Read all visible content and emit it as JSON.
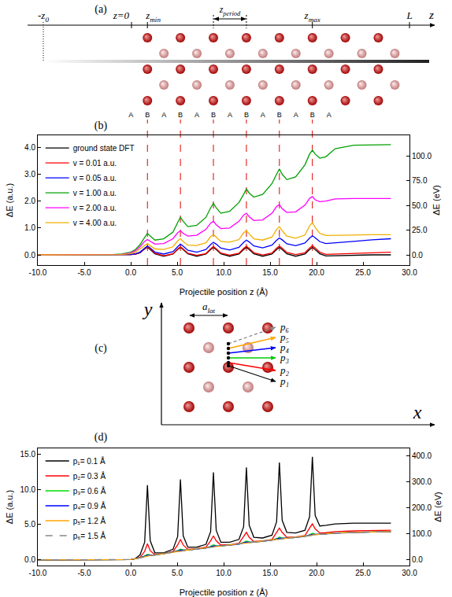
{
  "chart_data": [
    {
      "type": "line",
      "title": "(b)",
      "x_label": "Projectile position z (Å)",
      "y_label": "ΔE (a.u.)",
      "y2_label": "ΔE (eV)",
      "x": [
        -10,
        -7,
        -4,
        -2,
        -1,
        0,
        0.5,
        1.0,
        1.5,
        1.8,
        2.1,
        2.6,
        3.55,
        4.55,
        5.05,
        5.35,
        5.65,
        6.15,
        7.1,
        8.1,
        8.6,
        8.9,
        9.2,
        9.7,
        10.65,
        11.65,
        12.15,
        12.45,
        12.75,
        13.25,
        14.2,
        15.2,
        15.7,
        16.0,
        16.3,
        16.8,
        17.75,
        18.75,
        19.25,
        19.55,
        19.85,
        20.35,
        21,
        22,
        24,
        26,
        28
      ],
      "series": [
        {
          "name": "ground state DFT",
          "color": "#000000",
          "values": [
            0,
            0,
            0,
            0,
            0,
            0.01,
            0.03,
            0.08,
            0.22,
            0.28,
            0.2,
            0.04,
            -0.05,
            0.03,
            0.2,
            0.28,
            0.2,
            0.04,
            -0.05,
            0.03,
            0.2,
            0.28,
            0.2,
            0.04,
            -0.05,
            0.03,
            0.2,
            0.28,
            0.2,
            0.04,
            -0.05,
            0.03,
            0.2,
            0.28,
            0.2,
            0.04,
            -0.05,
            0.03,
            0.2,
            0.28,
            0.2,
            0.04,
            -0.04,
            -0.03,
            -0.01,
            0,
            0
          ]
        },
        {
          "name": "v = 0.01 a.u.",
          "color": "#ff0000",
          "values": [
            0,
            0,
            0,
            0,
            0,
            0.01,
            0.03,
            0.09,
            0.23,
            0.3,
            0.22,
            0.06,
            -0.03,
            0.04,
            0.22,
            0.3,
            0.22,
            0.06,
            -0.02,
            0.05,
            0.23,
            0.31,
            0.23,
            0.07,
            -0.01,
            0.06,
            0.24,
            0.32,
            0.24,
            0.08,
            0,
            0.07,
            0.25,
            0.33,
            0.25,
            0.09,
            0.01,
            0.08,
            0.26,
            0.34,
            0.26,
            0.1,
            0.02,
            0.03,
            0.05,
            0.08,
            0.1
          ]
        },
        {
          "name": "v = 0.05 a.u.",
          "color": "#0000ff",
          "values": [
            0,
            0,
            0,
            0,
            0,
            0.01,
            0.04,
            0.1,
            0.25,
            0.33,
            0.26,
            0.1,
            0.03,
            0.12,
            0.3,
            0.4,
            0.32,
            0.17,
            0.1,
            0.2,
            0.38,
            0.47,
            0.4,
            0.25,
            0.18,
            0.28,
            0.46,
            0.55,
            0.48,
            0.33,
            0.26,
            0.36,
            0.54,
            0.63,
            0.56,
            0.41,
            0.34,
            0.44,
            0.62,
            0.71,
            0.64,
            0.49,
            0.42,
            0.44,
            0.5,
            0.56,
            0.6
          ]
        },
        {
          "name": "v = 1.00 a.u.",
          "color": "#00a000",
          "values": [
            0,
            0,
            0,
            0.01,
            0.03,
            0.1,
            0.2,
            0.38,
            0.65,
            0.8,
            0.7,
            0.55,
            0.6,
            0.85,
            1.2,
            1.4,
            1.25,
            1.05,
            1.1,
            1.4,
            1.75,
            1.92,
            1.75,
            1.55,
            1.62,
            1.95,
            2.25,
            2.45,
            2.3,
            2.15,
            2.25,
            2.65,
            3.0,
            3.2,
            3.0,
            2.8,
            2.9,
            3.35,
            3.75,
            3.9,
            3.75,
            3.6,
            3.65,
            3.95,
            4.08,
            4.1,
            4.1
          ]
        },
        {
          "name": "v = 2.00 a.u.",
          "color": "#ff00ff",
          "values": [
            0,
            0,
            0,
            0,
            0.02,
            0.07,
            0.15,
            0.3,
            0.5,
            0.57,
            0.5,
            0.4,
            0.42,
            0.6,
            0.82,
            0.9,
            0.8,
            0.7,
            0.73,
            0.95,
            1.18,
            1.25,
            1.12,
            0.98,
            1.0,
            1.25,
            1.48,
            1.55,
            1.42,
            1.28,
            1.3,
            1.55,
            1.8,
            1.87,
            1.72,
            1.58,
            1.6,
            1.85,
            2.1,
            2.17,
            2.05,
            1.98,
            2.0,
            2.08,
            2.1,
            2.1,
            2.1
          ]
        },
        {
          "name": "v = 4.00 a.u.",
          "color": "#f0b000",
          "values": [
            0,
            0,
            0,
            0,
            0.01,
            0.05,
            0.1,
            0.22,
            0.36,
            0.42,
            0.34,
            0.22,
            0.2,
            0.3,
            0.52,
            0.6,
            0.5,
            0.36,
            0.35,
            0.45,
            0.68,
            0.76,
            0.66,
            0.5,
            0.47,
            0.57,
            0.82,
            0.9,
            0.78,
            0.6,
            0.55,
            0.66,
            0.95,
            1.05,
            0.9,
            0.7,
            0.62,
            0.74,
            1.08,
            1.2,
            1.02,
            0.8,
            0.72,
            0.73,
            0.75,
            0.75,
            0.75
          ]
        }
      ],
      "xlim": [
        -10,
        30
      ],
      "xticks": [
        {
          "value": -10,
          "label": "-10.0"
        },
        {
          "value": -5,
          "label": "-5.0"
        },
        {
          "value": 0,
          "label": "0.0"
        },
        {
          "value": 5,
          "label": "5.0"
        },
        {
          "value": 10,
          "label": "10.0"
        },
        {
          "value": 15,
          "label": "15.0"
        },
        {
          "value": 20,
          "label": "20.0"
        },
        {
          "value": 25,
          "label": "25.0"
        },
        {
          "value": 30,
          "label": "30.0"
        }
      ],
      "ylim": [
        -0.38,
        4.45
      ],
      "yticks": [
        {
          "value": 0,
          "label": "0.0"
        },
        {
          "value": 1,
          "label": "1.0"
        },
        {
          "value": 2,
          "label": "2.0"
        },
        {
          "value": 3,
          "label": "3.0"
        },
        {
          "value": 4,
          "label": "4.0"
        }
      ],
      "y2lim": [
        -10.34,
        121.09
      ],
      "y2ticks": [
        {
          "value": 0,
          "label": "0.0"
        },
        {
          "value": 25,
          "label": "25.0"
        },
        {
          "value": 50,
          "label": "50.0"
        },
        {
          "value": 75,
          "label": "75.0"
        },
        {
          "value": 100,
          "label": "100.0"
        }
      ],
      "vlines": [
        1.8,
        5.35,
        8.9,
        12.45,
        16.0,
        19.55
      ],
      "legend": "upper left",
      "grid": false
    },
    {
      "type": "line",
      "title": "(d)",
      "x_label": "Projectile position z (Å)",
      "y_label": "ΔE (a.u.)",
      "y2_label": "ΔE (eV)",
      "x": [
        -10,
        -7,
        -4,
        -2,
        -1,
        0,
        0.5,
        1.0,
        1.5,
        1.8,
        2.1,
        2.6,
        3.55,
        4.55,
        5.05,
        5.35,
        5.65,
        6.15,
        7.1,
        8.1,
        8.6,
        8.9,
        9.2,
        9.7,
        10.65,
        11.65,
        12.15,
        12.45,
        12.75,
        13.25,
        14.2,
        15.2,
        15.7,
        16.0,
        16.3,
        16.8,
        17.75,
        18.75,
        19.25,
        19.55,
        19.85,
        20.35,
        21,
        22,
        24,
        26,
        28
      ],
      "series": [
        {
          "name": "p₁= 0.1 Å",
          "color": "#000000",
          "values": [
            0,
            0,
            0,
            0,
            0,
            0.05,
            0.2,
            0.7,
            2.5,
            10.6,
            2.7,
            1.0,
            1.0,
            1.5,
            3.3,
            11.4,
            3.4,
            1.8,
            1.8,
            2.2,
            4.0,
            12.4,
            4.2,
            2.5,
            2.5,
            2.9,
            4.7,
            13.1,
            4.9,
            3.2,
            3.1,
            3.5,
            5.4,
            13.8,
            5.6,
            3.9,
            3.8,
            4.2,
            6.1,
            14.6,
            6.3,
            4.8,
            4.9,
            5.1,
            5.2,
            5.2,
            5.2
          ]
        },
        {
          "name": "p₂= 0.3 Å",
          "color": "#ff0000",
          "values": [
            0,
            0,
            0,
            0,
            0,
            0.05,
            0.15,
            0.35,
            1.2,
            2.3,
            1.3,
            0.75,
            0.9,
            1.2,
            2.1,
            2.9,
            2.1,
            1.5,
            1.6,
            1.8,
            2.7,
            3.4,
            2.7,
            2.1,
            2.15,
            2.35,
            3.3,
            3.9,
            3.2,
            2.6,
            2.7,
            2.9,
            3.9,
            4.5,
            3.9,
            3.2,
            3.25,
            3.45,
            4.5,
            5.1,
            4.4,
            3.8,
            3.85,
            4.0,
            4.1,
            4.15,
            4.2
          ]
        },
        {
          "name": "p₃= 0.6 Å",
          "color": "#00dd00",
          "values": [
            0,
            0,
            0,
            0,
            0,
            0.05,
            0.15,
            0.3,
            0.57,
            0.8,
            0.7,
            0.7,
            0.9,
            1.1,
            1.32,
            1.53,
            1.42,
            1.4,
            1.55,
            1.7,
            1.92,
            2.12,
            2.0,
            1.98,
            2.1,
            2.25,
            2.47,
            2.67,
            2.55,
            2.52,
            2.65,
            2.8,
            3.02,
            3.22,
            3.1,
            3.08,
            3.2,
            3.35,
            3.57,
            3.77,
            3.65,
            3.62,
            3.7,
            3.8,
            3.9,
            3.95,
            4.0
          ]
        },
        {
          "name": "p₄= 0.9 Å",
          "color": "#0000ff",
          "values": [
            0,
            0,
            0,
            0,
            0,
            0.05,
            0.15,
            0.3,
            0.5,
            0.65,
            0.65,
            0.7,
            0.88,
            1.08,
            1.25,
            1.38,
            1.36,
            1.4,
            1.53,
            1.68,
            1.85,
            1.97,
            1.94,
            1.97,
            2.08,
            2.23,
            2.4,
            2.52,
            2.5,
            2.51,
            2.63,
            2.78,
            2.95,
            3.07,
            3.05,
            3.07,
            3.18,
            3.33,
            3.5,
            3.62,
            3.6,
            3.61,
            3.68,
            3.78,
            3.88,
            3.94,
            3.98
          ]
        },
        {
          "name": "p₅= 1.2 Å",
          "color": "#ffa500",
          "values": [
            0,
            0,
            0,
            0,
            0,
            0.05,
            0.15,
            0.3,
            0.45,
            0.55,
            0.6,
            0.7,
            0.9,
            1.1,
            1.2,
            1.28,
            1.32,
            1.4,
            1.55,
            1.7,
            1.8,
            1.87,
            1.9,
            1.98,
            2.1,
            2.25,
            2.35,
            2.42,
            2.45,
            2.52,
            2.65,
            2.8,
            2.9,
            2.97,
            3.0,
            3.08,
            3.2,
            3.35,
            3.45,
            3.52,
            3.55,
            3.62,
            3.7,
            3.8,
            3.9,
            3.95,
            4.0
          ]
        },
        {
          "name": "p₆= 1.5 Å",
          "color": "#888888",
          "line_style": "dashed",
          "values": [
            0,
            0,
            0,
            0,
            0,
            0.05,
            0.15,
            0.3,
            0.42,
            0.5,
            0.58,
            0.7,
            0.9,
            1.1,
            1.16,
            1.22,
            1.3,
            1.4,
            1.55,
            1.7,
            1.76,
            1.82,
            1.88,
            1.98,
            2.1,
            2.25,
            2.31,
            2.37,
            2.43,
            2.52,
            2.65,
            2.8,
            2.86,
            2.92,
            2.98,
            3.08,
            3.2,
            3.35,
            3.41,
            3.47,
            3.53,
            3.62,
            3.7,
            3.8,
            3.9,
            3.97,
            4.05
          ]
        }
      ],
      "xlim": [
        -10,
        30
      ],
      "xticks": [
        {
          "value": -10,
          "label": "-10.0"
        },
        {
          "value": -5,
          "label": "-5.0"
        },
        {
          "value": 0,
          "label": "0.0"
        },
        {
          "value": 5,
          "label": "5.0"
        },
        {
          "value": 10,
          "label": "10.0"
        },
        {
          "value": 15,
          "label": "15.0"
        },
        {
          "value": 20,
          "label": "20.0"
        },
        {
          "value": 25,
          "label": "25.0"
        },
        {
          "value": 30,
          "label": "30.0"
        }
      ],
      "ylim": [
        -0.8,
        15.8
      ],
      "yticks": [
        {
          "value": 0,
          "label": "0.0"
        },
        {
          "value": 5,
          "label": "5.0"
        },
        {
          "value": 10,
          "label": "10.0"
        },
        {
          "value": 15,
          "label": "15.0"
        }
      ],
      "y2lim": [
        -21.77,
        429.94
      ],
      "y2ticks": [
        {
          "value": 0,
          "label": "0.0"
        },
        {
          "value": 100,
          "label": "100.0"
        },
        {
          "value": 200,
          "label": "200.0"
        },
        {
          "value": 300,
          "label": "300.0"
        },
        {
          "value": 400,
          "label": "400.0"
        }
      ],
      "legend": "upper left",
      "grid": false
    }
  ],
  "diagram_a": {
    "title": "(a)",
    "axis_label": "z",
    "marks": [
      {
        "text": "-z",
        "sub": "0"
      },
      {
        "text": "z=0"
      },
      {
        "text": "z",
        "sub": "min"
      },
      {
        "text": "z",
        "sub": "period"
      },
      {
        "text": "z",
        "sub": "max"
      },
      {
        "text": "L"
      }
    ],
    "layers": [
      "A",
      "B",
      "A",
      "B",
      "A",
      "B",
      "A",
      "B",
      "A",
      "B",
      "A",
      "B",
      "A"
    ]
  },
  "diagram_c": {
    "title": "(c)",
    "x_axis": "x",
    "y_axis": "y",
    "lattice": {
      "text": "a",
      "sub": "lat"
    },
    "paths": [
      {
        "name": "p₁",
        "offset": 0.1,
        "color": "#000000"
      },
      {
        "name": "p₂",
        "offset": 0.3,
        "color": "#ff0000"
      },
      {
        "name": "p₃",
        "offset": 0.6,
        "color": "#00cc00"
      },
      {
        "name": "p₄",
        "offset": 0.9,
        "color": "#0000ff"
      },
      {
        "name": "p₅",
        "offset": 1.2,
        "color": "#ffa500"
      },
      {
        "name": "p₆",
        "offset": 1.5,
        "color": "#888888",
        "line_style": "dashed"
      }
    ]
  }
}
